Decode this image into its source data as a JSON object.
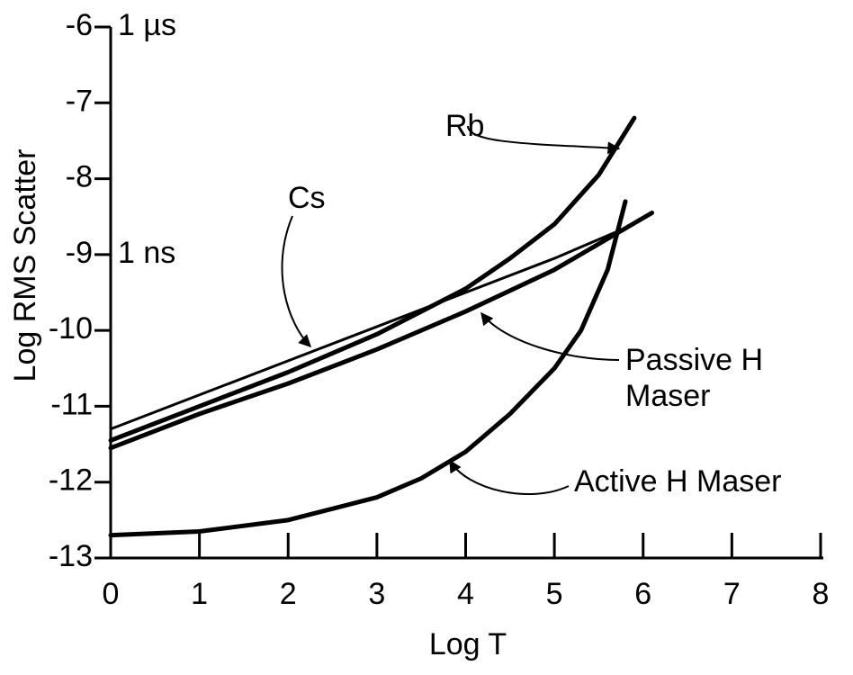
{
  "chart_data": {
    "type": "line",
    "xlabel": "Log T",
    "ylabel": "Log RMS Scatter",
    "xlim": [
      0,
      8
    ],
    "xticks": [
      0,
      1,
      2,
      3,
      4,
      5,
      6,
      7,
      8
    ],
    "ylim": [
      -13,
      -6
    ],
    "yticks": [
      -13,
      -12,
      -11,
      -10,
      -9,
      -8,
      -7,
      -6
    ],
    "annotations": [
      {
        "text": "1 µs",
        "y": -6
      },
      {
        "text": "1 ns",
        "y": -9
      }
    ],
    "series": [
      {
        "name": "Rb",
        "color": "#000000",
        "x": [
          0,
          1,
          2,
          3,
          4,
          4.5,
          5,
          5.5,
          5.9
        ],
        "values": [
          -11.45,
          -11.0,
          -10.55,
          -10.05,
          -9.45,
          -9.05,
          -8.6,
          -7.95,
          -7.2
        ]
      },
      {
        "name": "Cs",
        "color": "#000000",
        "x": [
          0,
          1,
          2,
          3,
          4,
          5,
          5.9
        ],
        "values": [
          -11.3,
          -10.85,
          -10.4,
          -9.95,
          -9.5,
          -9.05,
          -8.6
        ]
      },
      {
        "name": "Passive H Maser",
        "color": "#000000",
        "x": [
          0,
          1,
          2,
          3,
          4,
          5,
          6.1
        ],
        "values": [
          -11.55,
          -11.1,
          -10.7,
          -10.25,
          -9.75,
          -9.2,
          -8.45
        ]
      },
      {
        "name": "Active H Maser",
        "color": "#000000",
        "x": [
          0,
          1,
          2,
          3,
          3.5,
          4,
          4.5,
          5,
          5.3,
          5.6,
          5.8
        ],
        "values": [
          -12.7,
          -12.65,
          -12.5,
          -12.2,
          -11.95,
          -11.6,
          -11.1,
          -10.5,
          -10.0,
          -9.2,
          -8.3
        ]
      }
    ]
  }
}
